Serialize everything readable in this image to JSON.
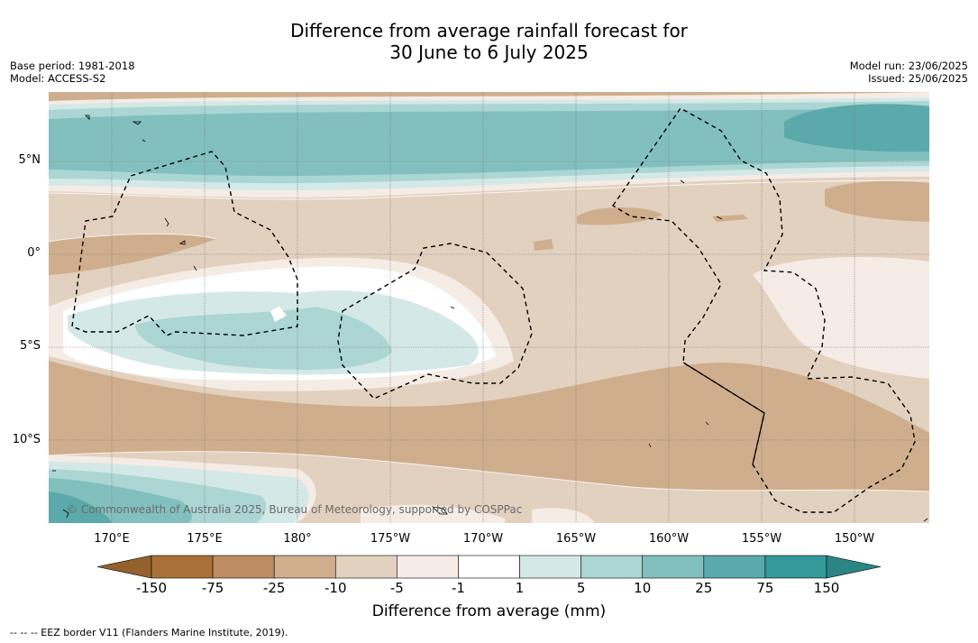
{
  "title_line1": "Difference from average rainfall forecast for",
  "title_line2": "30 June to 6 July 2025",
  "base_period": "Base period: 1981-2018",
  "model": "Model: ACCESS-S2",
  "model_run": "Model run: 23/06/2025",
  "issued": "Issued: 25/06/2025",
  "lat_labels": [
    "5°N",
    "0°",
    "5°S",
    "10°S"
  ],
  "lon_labels": [
    "170°E",
    "175°E",
    "180°",
    "175°W",
    "170°W",
    "165°W",
    "160°W",
    "155°W",
    "150°W"
  ],
  "copyright": "© Commonwealth of Australia 2025, Bureau of Meteorology, supported by COSPPac",
  "colorbar": {
    "ticks": [
      "-150",
      "-75",
      "-25",
      "-10",
      "-5",
      "-1",
      "1",
      "5",
      "10",
      "25",
      "75",
      "150"
    ],
    "colors": [
      "#a9703a",
      "#bc8d62",
      "#cfae8d",
      "#e3d1c0",
      "#f5ece6",
      "#ffffff",
      "#d4e9e7",
      "#abd6d4",
      "#82c0bf",
      "#5ba9aa",
      "#34999a"
    ],
    "under_color": "#94612d",
    "over_color": "#2b8585",
    "label": "Difference from average (mm)"
  },
  "footnote": "--  --  -- EEZ border V11 (Flanders Marine Institute, 2019)."
}
